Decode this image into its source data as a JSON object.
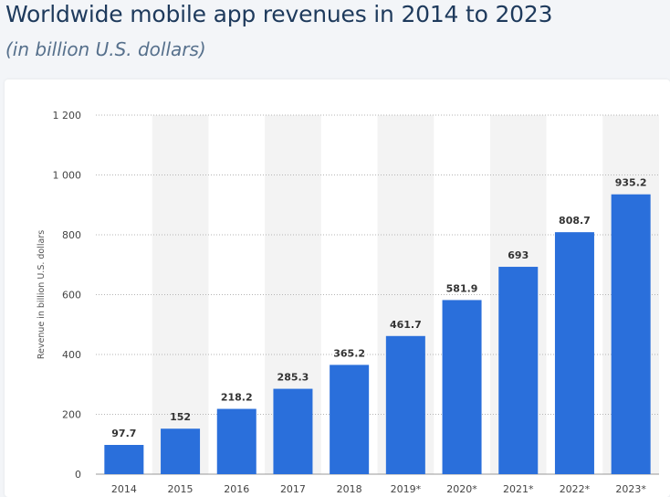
{
  "title": "Worldwide mobile app revenues in 2014 to 2023",
  "subtitle": "(in billion U.S. dollars)",
  "colors": {
    "bar": "#2a6fdb",
    "band": "#f3f3f3",
    "grid": "#b5b5b5"
  },
  "chart_data": {
    "type": "bar",
    "categories": [
      "2014",
      "2015",
      "2016",
      "2017",
      "2018",
      "2019*",
      "2020*",
      "2021*",
      "2022*",
      "2023*"
    ],
    "values": [
      97.7,
      152,
      218.2,
      285.3,
      365.2,
      461.7,
      581.9,
      693,
      808.7,
      935.2
    ],
    "value_labels": [
      "97.7",
      "152",
      "218.2",
      "285.3",
      "365.2",
      "461.7",
      "581.9",
      "693",
      "808.7",
      "935.2"
    ],
    "ylabel": "Revenue in billion U.S. dollars",
    "xlabel": "",
    "ylim": [
      0,
      1200
    ],
    "yticks": [
      0,
      200,
      400,
      600,
      800,
      1000,
      1200
    ],
    "ytick_labels": [
      "0",
      "200",
      "400",
      "600",
      "800",
      "1 000",
      "1 200"
    ],
    "grid": true,
    "alternating_column_bands": true
  }
}
